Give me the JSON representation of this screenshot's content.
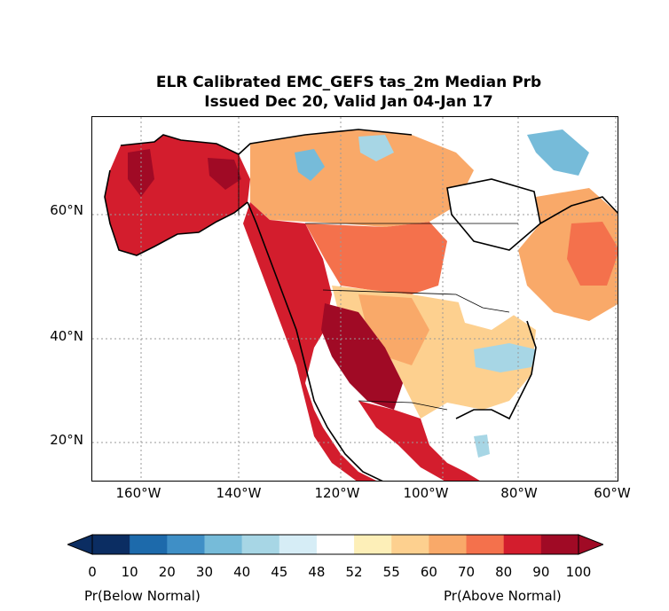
{
  "title": {
    "line1": "ELR Calibrated EMC_GEFS tas_2m Median Prb",
    "line2": "Issued Dec 20, Valid Jan 04-Jan 17"
  },
  "map": {
    "lat_labels": [
      "60°N",
      "40°N",
      "20°N"
    ],
    "lon_labels": [
      "160°W",
      "140°W",
      "120°W",
      "100°W",
      "80°W",
      "60°W"
    ],
    "gridlines": "dotted",
    "colors": {
      "c10": "#0b2d62",
      "c20": "#1d6aab",
      "c30": "#3f8fc6",
      "c40": "#76bbd9",
      "c45": "#a7d6e5",
      "c48": "#d6edf6",
      "c52": "#ffffff",
      "c55": "#fdefb8",
      "c60": "#fdd08f",
      "c70": "#f9a969",
      "c80": "#f4714c",
      "c90": "#d31d2d",
      "c100": "#a00a25"
    }
  },
  "colorbar": {
    "ticks": [
      "0",
      "10",
      "20",
      "30",
      "40",
      "45",
      "48",
      "52",
      "55",
      "60",
      "70",
      "80",
      "90",
      "100"
    ],
    "colors": [
      "#0b2d62",
      "#1d6aab",
      "#3f8fc6",
      "#76bbd9",
      "#a7d6e5",
      "#d6edf6",
      "#ffffff",
      "#fdefb8",
      "#fdd08f",
      "#f9a969",
      "#f4714c",
      "#d31d2d",
      "#a00a25"
    ],
    "left_label": "Pr(Below Normal)",
    "right_label": "Pr(Above Normal)"
  }
}
